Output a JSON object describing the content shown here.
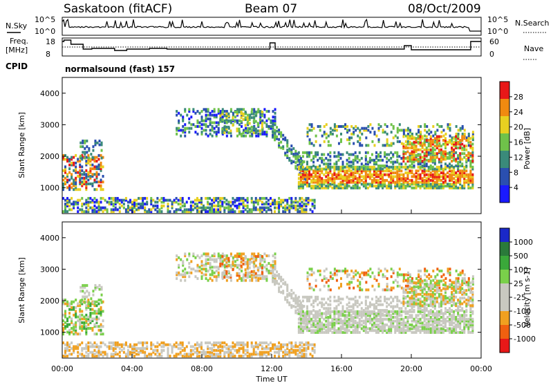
{
  "header": {
    "site": "Saskatoon (fitACF)",
    "beam": "Beam 07",
    "date": "08/Oct/2009"
  },
  "panels": {
    "nsky_label": "N.Sky",
    "nsky_ticks": [
      "10^5",
      "10^0"
    ],
    "nsearch_label": "N.Search",
    "freq_label": "Freq.",
    "freq_unit": "[MHz]",
    "freq_ticks": [
      "18",
      "8"
    ],
    "nave_ticks": [
      "60",
      "0"
    ],
    "nave_label": "Nave",
    "cpid_label": "CPID",
    "cpid_value": "normalsound (fast) 157"
  },
  "chart_data": [
    {
      "type": "heatmap",
      "name": "power",
      "ylabel": "Slant Range [km]",
      "xlabel": "Time UT",
      "xlim": [
        "00:00",
        "24:00"
      ],
      "ylim": [
        180,
        4500
      ],
      "yticks": [
        "1000",
        "2000",
        "3000",
        "4000"
      ],
      "xticks": [
        "00:00",
        "04:00",
        "08:00",
        "12:00",
        "16:00",
        "20:00",
        "00:00"
      ],
      "colorbar": {
        "label": "Power [dB]",
        "ticks": [
          "4",
          "8",
          "12",
          "16",
          "20",
          "24",
          "28"
        ],
        "colors": [
          "#1a1aff",
          "#2a4fb0",
          "#3a8a7a",
          "#6fc24a",
          "#e8d020",
          "#f08a10",
          "#e81818"
        ]
      },
      "regions": [
        {
          "t0": 0.0,
          "t1": 2.3,
          "r0": 900,
          "r1": 2200,
          "level": "high"
        },
        {
          "t0": 6.5,
          "t1": 12.2,
          "r0": 2500,
          "r1": 3400,
          "level": "low"
        },
        {
          "t0": 13.5,
          "t1": 23.5,
          "r0": 900,
          "r1": 1700,
          "level": "high"
        },
        {
          "t0": 13.5,
          "t1": 23.5,
          "r0": 2200,
          "r1": 3100,
          "level": "low"
        },
        {
          "t0": 19.5,
          "t1": 23.5,
          "r0": 1700,
          "r1": 2600,
          "level": "mid"
        },
        {
          "t0": 0.0,
          "t1": 14.5,
          "r0": 200,
          "r1": 600,
          "level": "low"
        }
      ]
    },
    {
      "type": "heatmap",
      "name": "velocity",
      "ylabel": "Slant Range [km]",
      "xlabel": "Time UT",
      "xlim": [
        "00:00",
        "24:00"
      ],
      "ylim": [
        180,
        4500
      ],
      "yticks": [
        "1000",
        "2000",
        "3000",
        "4000"
      ],
      "xticks": [
        "00:00",
        "04:00",
        "08:00",
        "12:00",
        "16:00",
        "20:00",
        "00:00"
      ],
      "colorbar": {
        "label": "Velocity [m s-1]",
        "ticks": [
          "1000",
          "500",
          "100",
          "25",
          "-25",
          "-100",
          "-500",
          "-1000"
        ],
        "colors": [
          "#1a28c8",
          "#2a7a3a",
          "#3aa83a",
          "#7ad04a",
          "#c8c8c0",
          "#c8c8c0",
          "#f0a020",
          "#f06010",
          "#e81818"
        ]
      }
    }
  ]
}
